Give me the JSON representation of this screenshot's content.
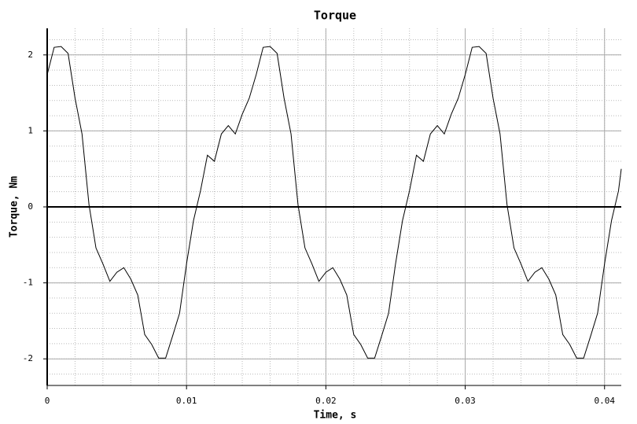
{
  "chart_data": {
    "type": "line",
    "title": "Torque",
    "x_label": "Time, s",
    "y_label": "Torque, Nm",
    "x": [
      0,
      0.0005,
      0.001,
      0.0015,
      0.002,
      0.0025,
      0.003,
      0.0035,
      0.004,
      0.0045,
      0.005,
      0.0055,
      0.006,
      0.0065,
      0.007,
      0.0075,
      0.008,
      0.0085,
      0.009,
      0.0095,
      0.01,
      0.0105,
      0.011,
      0.0115,
      0.012,
      0.0125,
      0.013,
      0.0135,
      0.014,
      0.0145,
      0.015,
      0.0155,
      0.016,
      0.0165,
      0.017,
      0.0175,
      0.018,
      0.0185,
      0.019,
      0.0195,
      0.02,
      0.0205,
      0.021,
      0.0215,
      0.022,
      0.0225,
      0.023,
      0.0235,
      0.024,
      0.0245,
      0.025,
      0.0255,
      0.026,
      0.0265,
      0.027,
      0.0275,
      0.028,
      0.0285,
      0.029,
      0.0295,
      0.03,
      0.0305,
      0.031,
      0.0315,
      0.032,
      0.0325,
      0.033,
      0.0335,
      0.034,
      0.0345,
      0.035,
      0.0355,
      0.036,
      0.0365,
      0.037,
      0.0375,
      0.038,
      0.0385,
      0.039,
      0.0395,
      0.04,
      0.0405,
      0.041,
      0.0412
    ],
    "series": [
      {
        "name": "Torque",
        "color": "#000000",
        "values": [
          1.74,
          2.1,
          2.11,
          2.02,
          1.43,
          0.96,
          0.03,
          -0.54,
          -0.75,
          -0.98,
          -0.86,
          -0.8,
          -0.95,
          -1.16,
          -1.68,
          -1.81,
          -1.99,
          -1.99,
          -1.7,
          -1.4,
          -0.75,
          -0.18,
          0.21,
          0.68,
          0.6,
          0.96,
          1.07,
          0.96,
          1.22,
          1.43,
          1.74,
          2.1,
          2.11,
          2.02,
          1.43,
          0.96,
          0.03,
          -0.54,
          -0.75,
          -0.98,
          -0.86,
          -0.8,
          -0.95,
          -1.16,
          -1.68,
          -1.81,
          -1.99,
          -1.99,
          -1.7,
          -1.4,
          -0.75,
          -0.18,
          0.21,
          0.68,
          0.6,
          0.96,
          1.07,
          0.96,
          1.22,
          1.43,
          1.74,
          2.1,
          2.11,
          2.02,
          1.43,
          0.96,
          0.03,
          -0.54,
          -0.75,
          -0.98,
          -0.86,
          -0.8,
          -0.95,
          -1.16,
          -1.68,
          -1.81,
          -1.99,
          -1.99,
          -1.7,
          -1.4,
          -0.75,
          -0.18,
          0.21,
          0.5
        ]
      }
    ],
    "xlim": [
      0,
      0.0412
    ],
    "ylim": [
      -2.35,
      2.35
    ],
    "xticks": [
      0,
      0.01,
      0.02,
      0.03,
      0.04
    ],
    "yticks": [
      -2,
      -1,
      0,
      1,
      2
    ],
    "grid": true
  }
}
